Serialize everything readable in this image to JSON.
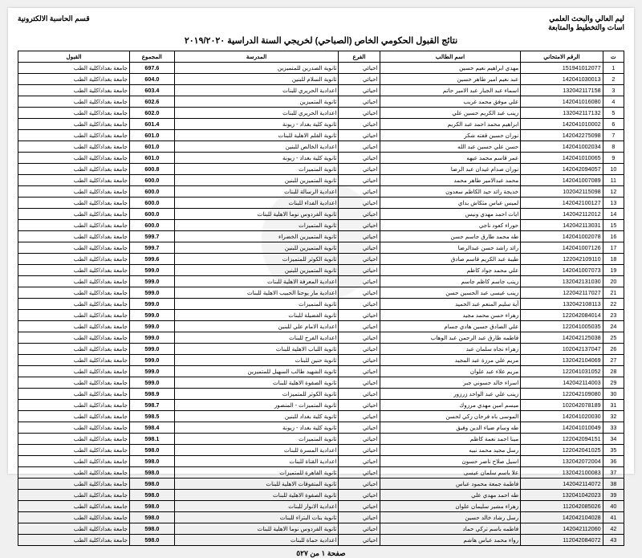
{
  "header": {
    "right_line1": "ليم العالي والبحث العلمي",
    "right_line2": "اسات والتخطيط والمتابعة",
    "left_line1": "قسم الحاسبة الالكترونية",
    "title": "نتائج القبول الحكومي الخاص (الصباحي) لخريجي السنة الدراسية ٢٠١٩/٢٠٢٠"
  },
  "columns": [
    "ت",
    "الرقم الامتحاني",
    "اسم الطالب",
    "الفرع",
    "المدرسة",
    "المجموع",
    "القبول"
  ],
  "rows": [
    [
      "1",
      "151941012077",
      "مهدي ابراهيم نعيم حسين",
      "احيائي",
      "ثانوية الصدرين للمتميزين",
      "697.6",
      "جامعة بغداد/كلية الطب"
    ],
    [
      "2",
      "142041030013",
      "عبد نعيم امير طاهر حسين",
      "احيائي",
      "ثانوية السلام للبنين",
      "604.0",
      "جامعة بغداد/كلية الطب"
    ],
    [
      "3",
      "132042117158",
      "اسماء عبد الجبار عبد الامير حاتم",
      "احيائي",
      "اعدادية الحريري للبنات",
      "603.4",
      "جامعة بغداد/كلية الطب"
    ],
    [
      "4",
      "142041016080",
      "علي موفق محمد غريب",
      "احيائي",
      "ثانوية المتميزين",
      "602.6",
      "جامعة بغداد/كلية الطب"
    ],
    [
      "5",
      "132042117132",
      "زينب عبد الكريم حسين علي",
      "احيائي",
      "اعدادية الحريري للبنات",
      "602.0",
      "جامعة بغداد/كلية الطب"
    ],
    [
      "6",
      "142041010002",
      "ابراهيم محمد احمد عبد الكريم",
      "احيائي",
      "ثانوية كلية بغداد - زيونة",
      "601.4",
      "جامعة بغداد/كلية الطب"
    ],
    [
      "7",
      "142042275098",
      "نوران حسين قفته شكر",
      "احيائي",
      "ثانوية القلم الاهلية للبنات",
      "601.0",
      "جامعة بغداد/كلية الطب"
    ],
    [
      "8",
      "142041002034",
      "حسن علي حسين عبد الله",
      "احيائي",
      "اعدادية الخالص للبنين",
      "601.0",
      "جامعة بغداد/كلية الطب"
    ],
    [
      "9",
      "142041010065",
      "عمر قاسم محمد عيهه",
      "احيائي",
      "ثانوية كلية بغداد - زيونة",
      "601.0",
      "جامعة بغداد/كلية الطب"
    ],
    [
      "10",
      "142042094057",
      "نوران صدام غيدان عبد الرضا",
      "احيائي",
      "ثانوية المتميزات",
      "600.8",
      "جامعة بغداد/كلية الطب"
    ],
    [
      "11",
      "142041007089",
      "محمد عبدالامير طاهر محمد",
      "احيائي",
      "ثانوية المتميزين للبنين",
      "600.0",
      "جامعة بغداد/كلية الطب"
    ],
    [
      "12",
      "102042115098",
      "خديجة رائد حيد الكاظم سعدون",
      "احيائي",
      "اعدادية الرسالة للبنات",
      "600.0",
      "جامعة بغداد/كلية الطب"
    ],
    [
      "13",
      "142042100127",
      "لميس عباس مثكاش بداي",
      "احيائي",
      "اعدادية الفداء للبنات",
      "600.0",
      "جامعة بغداد/كلية الطب"
    ],
    [
      "14",
      "142042112012",
      "ايات احمد مهدي ونيس",
      "احيائي",
      "ثانوية الفردوس نوما الاهلية للبنات",
      "600.0",
      "جامعة بغداد/كلية الطب"
    ],
    [
      "15",
      "142042113031",
      "حوراء كعود ناجي",
      "احيائي",
      "ثانوية المتميزات",
      "600.0",
      "جامعة بغداد/كلية الطب"
    ],
    [
      "16",
      "142041002078",
      "طه محمد طارق جاسم حسن",
      "احيائي",
      "ثانوية المتميزين الخضراء",
      "599.7",
      "جامعة بغداد/كلية الطب"
    ],
    [
      "17",
      "142041007126",
      "رائد راشد حسن عبدالرضا",
      "احيائي",
      "ثانوية المتميزين للبنين",
      "599.7",
      "جامعة بغداد/كلية الطب"
    ],
    [
      "18",
      "122042109110",
      "طيبة عبد الكريم قاسم صادق",
      "احيائي",
      "ثانوية الكوثر للمتميزات",
      "599.6",
      "جامعة بغداد/كلية الطب"
    ],
    [
      "19",
      "142041007073",
      "علي محمد جواد كاظم",
      "احيائي",
      "ثانوية المتميزين للبنين",
      "599.0",
      "جامعة بغداد/كلية الطب"
    ],
    [
      "20",
      "132042131030",
      "زينب جاسم كاظم جاسم",
      "احيائي",
      "اعدادية المعرفة الاهلية للبنات",
      "599.0",
      "جامعة بغداد/كلية الطب"
    ],
    [
      "21",
      "122042117027",
      "زينب عيسى عبد الحسين حسن",
      "احيائي",
      "اعدادية مار يوحنا الحبيب الاهلية للبنات",
      "599.0",
      "جامعة بغداد/كلية الطب"
    ],
    [
      "22",
      "132042108113",
      "آية سليم المنعم عبد الحميد",
      "احيائي",
      "ثانوية المتميزات",
      "599.0",
      "جامعة بغداد/كلية الطب"
    ],
    [
      "23",
      "122042084014",
      "زهراء حسن محمد مجيد",
      "احيائي",
      "ثانوية الفضيلة للبنات",
      "599.0",
      "جامعة بغداد/كلية الطب"
    ],
    [
      "24",
      "122041005035",
      "علي الصادق حسين هادي جسام",
      "احيائي",
      "اعدادية الامام علي للبنين",
      "599.0",
      "جامعة بغداد/كلية الطب"
    ],
    [
      "25",
      "142042125038",
      "فاطمه طارق عبد الرحمن عبد الوهاب",
      "احيائي",
      "اعدادية الفرح للبنات",
      "599.0",
      "جامعة بغداد/كلية الطب"
    ],
    [
      "26",
      "102042137047",
      "زهراء نجاه سلمان عبد",
      "احيائي",
      "ثانوية اللباب الاهلية للبنات",
      "599.0",
      "جامعة بغداد/كلية الطب"
    ],
    [
      "27",
      "132042104069",
      "مريم علي مرزة عبد المجيد",
      "احيائي",
      "ثانوية حنين للبنات",
      "599.0",
      "جامعة بغداد/كلية الطب"
    ],
    [
      "28",
      "122041031052",
      "مريم علاء عبد علوان",
      "احيائي",
      "ثانوية الشهيد طالب السهيل للمتميزين",
      "599.0",
      "جامعة بغداد/كلية الطب"
    ],
    [
      "29",
      "142042114003",
      "اسراء خالد حسوني جبر",
      "احيائي",
      "ثانوية الصفوة الاهلية للبنات",
      "599.0",
      "جامعة بغداد/كلية الطب"
    ],
    [
      "30",
      "122042109080",
      "زينب علي عبد الواحد زرزور",
      "احيائي",
      "ثانوية الكوثر للمتميزات",
      "598.9",
      "جامعة بغداد/كلية الطب"
    ],
    [
      "31",
      "102042078189",
      "ميسم امين مهدي مرزوك",
      "احيائي",
      "ثانوية المتميزات - المنصور",
      "598.7",
      "جامعة بغداد/كلية الطب"
    ],
    [
      "32",
      "142041020030",
      "الموسى باه فرحان زكي لحسن",
      "احيائي",
      "ثانوية كلية بغداد للبنين",
      "598.5",
      "جامعة بغداد/كلية الطب"
    ],
    [
      "33",
      "142041010049",
      "طه وسام ضياء الدين وفيق",
      "احيائي",
      "ثانوية كلية بغداد - زيونة",
      "598.4",
      "جامعة بغداد/كلية الطب"
    ],
    [
      "34",
      "122042094151",
      "مينا احمد نعمة كاظم",
      "احيائي",
      "ثانوية المتميزات",
      "598.1",
      "جامعة بغداد/كلية الطب"
    ],
    [
      "35",
      "122042041025",
      "رسل مجيد محمد نبيه",
      "احيائي",
      "اعدادية المسرة للبنات",
      "598.0",
      "جامعة بغداد/كلية الطب"
    ],
    [
      "36",
      "132042072004",
      "اسيل صلاح ناصر حسون",
      "احيائي",
      "اعدادية القناة للبنات",
      "598.0",
      "جامعة بغداد/كلية الطب"
    ],
    [
      "37",
      "132042100083",
      "علا باسم سلمان عيسى",
      "احيائي",
      "ثانوية القاهرة للمتميزات",
      "598.0",
      "جامعة بغداد/كلية الطب"
    ],
    [
      "38",
      "142042114072",
      "فاطمة جمعة محمود عباس",
      "احيائي",
      "ثانوية المتفوقات الاهلية للبنات",
      "598.0",
      "جامعة بغداد/كلية الطب"
    ],
    [
      "39",
      "132041042023",
      "طه احمد مهدي علي",
      "احيائي",
      "ثانوية الصفوة الاهلية للبنات",
      "598.0",
      "جامعة بغداد/كلية الطب"
    ],
    [
      "40",
      "112042085026",
      "زهراء مشير سليمان علوان",
      "احيائي",
      "اعدادية الانوار للبنات",
      "598.0",
      "جامعة بغداد/كلية الطب"
    ],
    [
      "41",
      "142042104028",
      "رسل رشاد خالد حسين",
      "احيائي",
      "ثانوية بنات البتراء للبنات",
      "598.0",
      "جامعة بغداد/كلية الطب"
    ],
    [
      "42",
      "142042112060",
      "فاطمه باسم تركي حماد",
      "احيائي",
      "ثانوية الفردوس نوما الاهلية للبنات",
      "598.0",
      "جامعة بغداد/كلية الطب"
    ],
    [
      "43",
      "112042084072",
      "رواء محمد عباس هاشم",
      "احيائي",
      "اعدادية حماة للبنات",
      "598.0",
      "جامعة بغداد/كلية الطب"
    ]
  ],
  "footer": "صفحة ١ من ٥٢٧"
}
